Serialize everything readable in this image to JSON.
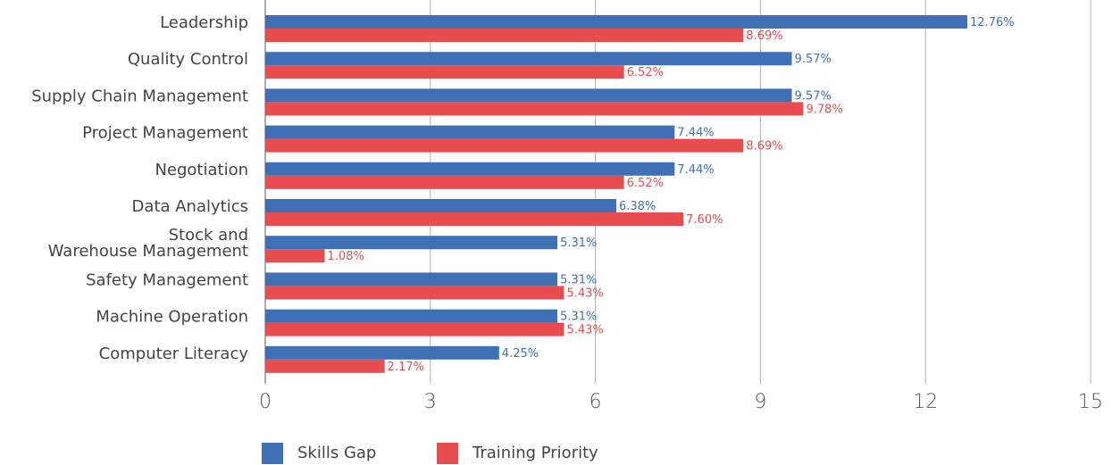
{
  "chart_data": {
    "type": "bar",
    "orientation": "horizontal",
    "categories": [
      "Leadership",
      "Quality Control",
      "Supply Chain Management",
      "Project Management",
      "Negotiation",
      "Data Analytics",
      "Stock and\nWarehouse Management",
      "Safety Management",
      "Machine Operation",
      "Computer Literacy"
    ],
    "series": [
      {
        "name": "Skills Gap",
        "color": "#3f6fb5",
        "values": [
          12.76,
          9.57,
          9.57,
          7.44,
          7.44,
          6.38,
          5.31,
          5.31,
          5.31,
          4.25
        ],
        "value_labels": [
          "12.76%",
          "9.57%",
          "9.57%",
          "7.44%",
          "7.44%",
          "6.38%",
          "5.31%",
          "5.31%",
          "5.31%",
          "4.25%"
        ]
      },
      {
        "name": "Training Priority",
        "color": "#e84c4f",
        "values": [
          8.69,
          6.52,
          9.78,
          8.69,
          6.52,
          7.6,
          1.08,
          5.43,
          5.43,
          2.17
        ],
        "value_labels": [
          "8.69%",
          "6.52%",
          "9.78%",
          "8.69%",
          "6.52%",
          "7.60%",
          "1.08%",
          "5.43%",
          "5.43%",
          "2.17%"
        ]
      }
    ],
    "xlim": [
      0,
      15
    ],
    "xticks": [
      0,
      3,
      6,
      9,
      12,
      15
    ],
    "grid": true,
    "legend": "bottom"
  }
}
